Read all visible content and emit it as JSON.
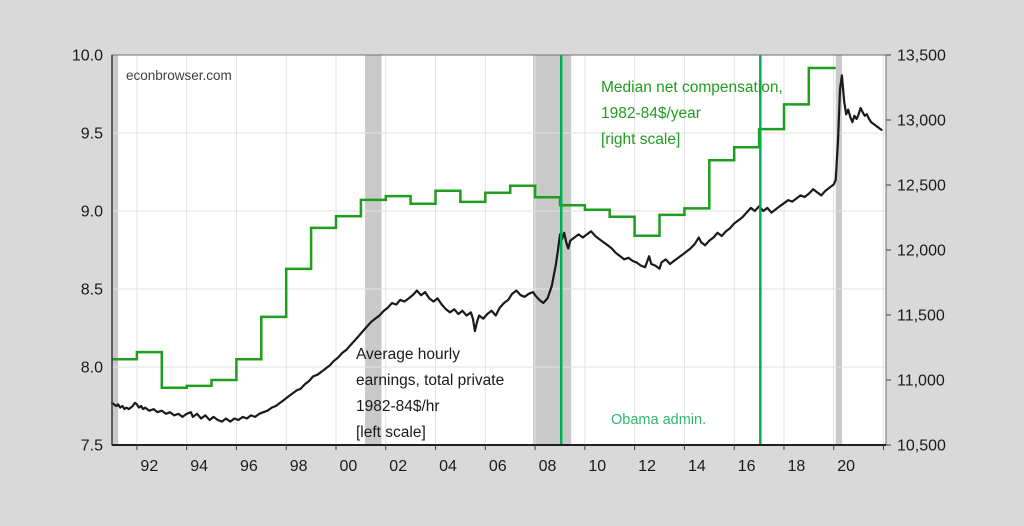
{
  "page": {
    "background": "#d9d9d9",
    "plot_background": "#ffffff",
    "watermark": "econbrowser.com"
  },
  "chart_data": {
    "type": "line",
    "title": "",
    "xlabel": "",
    "ylabel_left": "Average hourly earnings, total private, 1982-84$/hr",
    "ylabel_right": "Median net compensation, 1982-84$/year",
    "grid": true,
    "x_axis": {
      "domain": [
        1991,
        2022.1
      ],
      "labels": [
        "92",
        "94",
        "96",
        "98",
        "00",
        "02",
        "04",
        "06",
        "08",
        "10",
        "12",
        "14",
        "16",
        "18",
        "20"
      ],
      "label_years": [
        1992,
        1994,
        1996,
        1998,
        2000,
        2002,
        2004,
        2006,
        2008,
        2010,
        2012,
        2014,
        2016,
        2018,
        2020
      ]
    },
    "left_axis": {
      "range": [
        7.5,
        10.0
      ],
      "ticks": [
        10.0,
        9.5,
        9.0,
        8.5,
        8.0,
        7.5
      ],
      "tick_labels": [
        "10.0",
        "9.5",
        "9.0",
        "8.5",
        "8.0",
        "7.5"
      ]
    },
    "right_axis": {
      "range": [
        10500,
        13500
      ],
      "ticks": [
        13500,
        13000,
        12500,
        12000,
        11500,
        11000,
        10500
      ],
      "tick_labels": [
        "13,500",
        "13,000",
        "12,500",
        "12,000",
        "11,500",
        "11,000",
        "10,500"
      ]
    },
    "series": [
      {
        "name": "Average hourly earnings, total private 1982-84$/hr [left scale]",
        "axis": "left",
        "style": "line",
        "color": "#1a1a1a",
        "points": [
          [
            1991.0,
            7.77
          ],
          [
            1991.08,
            7.76
          ],
          [
            1991.17,
            7.75
          ],
          [
            1991.25,
            7.76
          ],
          [
            1991.33,
            7.74
          ],
          [
            1991.42,
            7.75
          ],
          [
            1991.5,
            7.73
          ],
          [
            1991.58,
            7.74
          ],
          [
            1991.67,
            7.73
          ],
          [
            1991.75,
            7.74
          ],
          [
            1991.83,
            7.75
          ],
          [
            1991.92,
            7.77
          ],
          [
            1992.0,
            7.76
          ],
          [
            1992.08,
            7.74
          ],
          [
            1992.17,
            7.75
          ],
          [
            1992.25,
            7.73
          ],
          [
            1992.33,
            7.74
          ],
          [
            1992.5,
            7.72
          ],
          [
            1992.67,
            7.73
          ],
          [
            1992.83,
            7.71
          ],
          [
            1993.0,
            7.72
          ],
          [
            1993.17,
            7.7
          ],
          [
            1993.33,
            7.71
          ],
          [
            1993.5,
            7.69
          ],
          [
            1993.67,
            7.7
          ],
          [
            1993.83,
            7.68
          ],
          [
            1994.0,
            7.7
          ],
          [
            1994.17,
            7.71
          ],
          [
            1994.25,
            7.68
          ],
          [
            1994.42,
            7.7
          ],
          [
            1994.58,
            7.67
          ],
          [
            1994.75,
            7.69
          ],
          [
            1994.92,
            7.66
          ],
          [
            1995.08,
            7.68
          ],
          [
            1995.25,
            7.66
          ],
          [
            1995.42,
            7.65
          ],
          [
            1995.58,
            7.67
          ],
          [
            1995.75,
            7.65
          ],
          [
            1995.92,
            7.67
          ],
          [
            1996.08,
            7.66
          ],
          [
            1996.25,
            7.68
          ],
          [
            1996.42,
            7.67
          ],
          [
            1996.58,
            7.69
          ],
          [
            1996.75,
            7.68
          ],
          [
            1996.92,
            7.7
          ],
          [
            1997.08,
            7.71
          ],
          [
            1997.25,
            7.72
          ],
          [
            1997.42,
            7.74
          ],
          [
            1997.58,
            7.75
          ],
          [
            1997.75,
            7.77
          ],
          [
            1997.92,
            7.79
          ],
          [
            1998.08,
            7.81
          ],
          [
            1998.25,
            7.83
          ],
          [
            1998.42,
            7.85
          ],
          [
            1998.58,
            7.86
          ],
          [
            1998.75,
            7.89
          ],
          [
            1998.92,
            7.91
          ],
          [
            1999.08,
            7.94
          ],
          [
            1999.25,
            7.95
          ],
          [
            1999.42,
            7.97
          ],
          [
            1999.58,
            7.99
          ],
          [
            1999.75,
            8.01
          ],
          [
            1999.92,
            8.04
          ],
          [
            2000.08,
            8.06
          ],
          [
            2000.25,
            8.09
          ],
          [
            2000.42,
            8.11
          ],
          [
            2000.58,
            8.14
          ],
          [
            2000.75,
            8.17
          ],
          [
            2000.92,
            8.2
          ],
          [
            2001.08,
            8.23
          ],
          [
            2001.25,
            8.26
          ],
          [
            2001.42,
            8.29
          ],
          [
            2001.58,
            8.31
          ],
          [
            2001.75,
            8.33
          ],
          [
            2001.92,
            8.36
          ],
          [
            2002.08,
            8.38
          ],
          [
            2002.25,
            8.41
          ],
          [
            2002.42,
            8.4
          ],
          [
            2002.58,
            8.43
          ],
          [
            2002.75,
            8.42
          ],
          [
            2002.92,
            8.44
          ],
          [
            2003.08,
            8.46
          ],
          [
            2003.25,
            8.49
          ],
          [
            2003.42,
            8.46
          ],
          [
            2003.58,
            8.48
          ],
          [
            2003.75,
            8.44
          ],
          [
            2003.92,
            8.42
          ],
          [
            2004.08,
            8.44
          ],
          [
            2004.25,
            8.4
          ],
          [
            2004.42,
            8.37
          ],
          [
            2004.58,
            8.35
          ],
          [
            2004.75,
            8.37
          ],
          [
            2004.92,
            8.34
          ],
          [
            2005.08,
            8.36
          ],
          [
            2005.25,
            8.33
          ],
          [
            2005.42,
            8.35
          ],
          [
            2005.5,
            8.31
          ],
          [
            2005.58,
            8.23
          ],
          [
            2005.67,
            8.29
          ],
          [
            2005.75,
            8.33
          ],
          [
            2005.92,
            8.31
          ],
          [
            2006.08,
            8.34
          ],
          [
            2006.25,
            8.36
          ],
          [
            2006.42,
            8.33
          ],
          [
            2006.58,
            8.38
          ],
          [
            2006.75,
            8.41
          ],
          [
            2006.92,
            8.43
          ],
          [
            2007.08,
            8.47
          ],
          [
            2007.25,
            8.49
          ],
          [
            2007.42,
            8.46
          ],
          [
            2007.58,
            8.45
          ],
          [
            2007.75,
            8.47
          ],
          [
            2007.92,
            8.48
          ],
          [
            2008.0,
            8.46
          ],
          [
            2008.17,
            8.43
          ],
          [
            2008.33,
            8.41
          ],
          [
            2008.5,
            8.44
          ],
          [
            2008.67,
            8.52
          ],
          [
            2008.83,
            8.65
          ],
          [
            2008.92,
            8.75
          ],
          [
            2009.0,
            8.85
          ],
          [
            2009.08,
            8.82
          ],
          [
            2009.17,
            8.86
          ],
          [
            2009.25,
            8.8
          ],
          [
            2009.33,
            8.76
          ],
          [
            2009.42,
            8.81
          ],
          [
            2009.58,
            8.83
          ],
          [
            2009.75,
            8.85
          ],
          [
            2009.92,
            8.83
          ],
          [
            2010.08,
            8.85
          ],
          [
            2010.25,
            8.87
          ],
          [
            2010.42,
            8.84
          ],
          [
            2010.58,
            8.82
          ],
          [
            2010.75,
            8.8
          ],
          [
            2010.92,
            8.78
          ],
          [
            2011.08,
            8.76
          ],
          [
            2011.25,
            8.73
          ],
          [
            2011.42,
            8.71
          ],
          [
            2011.58,
            8.69
          ],
          [
            2011.75,
            8.7
          ],
          [
            2011.92,
            8.68
          ],
          [
            2012.08,
            8.67
          ],
          [
            2012.25,
            8.65
          ],
          [
            2012.42,
            8.64
          ],
          [
            2012.58,
            8.71
          ],
          [
            2012.67,
            8.66
          ],
          [
            2012.83,
            8.65
          ],
          [
            2013.0,
            8.63
          ],
          [
            2013.08,
            8.67
          ],
          [
            2013.25,
            8.69
          ],
          [
            2013.42,
            8.66
          ],
          [
            2013.58,
            8.68
          ],
          [
            2013.75,
            8.7
          ],
          [
            2013.92,
            8.72
          ],
          [
            2014.08,
            8.74
          ],
          [
            2014.25,
            8.76
          ],
          [
            2014.42,
            8.79
          ],
          [
            2014.58,
            8.83
          ],
          [
            2014.67,
            8.8
          ],
          [
            2014.83,
            8.78
          ],
          [
            2015.0,
            8.81
          ],
          [
            2015.17,
            8.83
          ],
          [
            2015.33,
            8.86
          ],
          [
            2015.5,
            8.84
          ],
          [
            2015.67,
            8.87
          ],
          [
            2015.83,
            8.89
          ],
          [
            2016.0,
            8.92
          ],
          [
            2016.17,
            8.94
          ],
          [
            2016.33,
            8.96
          ],
          [
            2016.5,
            8.99
          ],
          [
            2016.67,
            9.02
          ],
          [
            2016.83,
            9.0
          ],
          [
            2017.0,
            9.03
          ],
          [
            2017.17,
            9.0
          ],
          [
            2017.33,
            9.02
          ],
          [
            2017.5,
            8.99
          ],
          [
            2017.67,
            9.01
          ],
          [
            2017.83,
            9.03
          ],
          [
            2018.0,
            9.05
          ],
          [
            2018.17,
            9.07
          ],
          [
            2018.33,
            9.06
          ],
          [
            2018.5,
            9.08
          ],
          [
            2018.67,
            9.1
          ],
          [
            2018.83,
            9.09
          ],
          [
            2019.0,
            9.11
          ],
          [
            2019.17,
            9.14
          ],
          [
            2019.33,
            9.12
          ],
          [
            2019.5,
            9.1
          ],
          [
            2019.67,
            9.13
          ],
          [
            2019.83,
            9.15
          ],
          [
            2020.0,
            9.17
          ],
          [
            2020.08,
            9.2
          ],
          [
            2020.17,
            9.45
          ],
          [
            2020.25,
            9.78
          ],
          [
            2020.33,
            9.87
          ],
          [
            2020.42,
            9.7
          ],
          [
            2020.5,
            9.62
          ],
          [
            2020.58,
            9.65
          ],
          [
            2020.67,
            9.6
          ],
          [
            2020.75,
            9.57
          ],
          [
            2020.83,
            9.61
          ],
          [
            2020.92,
            9.59
          ],
          [
            2021.0,
            9.62
          ],
          [
            2021.08,
            9.66
          ],
          [
            2021.17,
            9.63
          ],
          [
            2021.25,
            9.61
          ],
          [
            2021.33,
            9.62
          ],
          [
            2021.42,
            9.59
          ],
          [
            2021.5,
            9.57
          ],
          [
            2021.58,
            9.56
          ],
          [
            2021.67,
            9.55
          ],
          [
            2021.75,
            9.54
          ],
          [
            2021.83,
            9.53
          ],
          [
            2021.92,
            9.52
          ]
        ]
      },
      {
        "name": "Median net compensation, 1982-84$/year [right scale]",
        "axis": "right",
        "style": "step",
        "color": "#1f9d1f",
        "years": [
          1991,
          1992,
          1993,
          1994,
          1995,
          1996,
          1997,
          1998,
          1999,
          2000,
          2001,
          2002,
          2003,
          2004,
          2005,
          2006,
          2007,
          2008,
          2009,
          2010,
          2011,
          2012,
          2013,
          2014,
          2015,
          2016,
          2017,
          2018,
          2019
        ],
        "values": [
          11160,
          11215,
          10940,
          10955,
          11000,
          11160,
          11485,
          11855,
          12170,
          12260,
          12385,
          12415,
          12355,
          12455,
          12370,
          12440,
          12495,
          12405,
          12345,
          12310,
          12255,
          12110,
          12270,
          12320,
          12690,
          12790,
          12930,
          13120,
          13400
        ],
        "end_year": 2020.08
      }
    ],
    "recession_bands": [
      [
        1991.0,
        1991.25
      ],
      [
        2001.17,
        2001.83
      ],
      [
        2007.92,
        2009.45
      ],
      [
        2020.08,
        2020.33
      ]
    ],
    "event_lines": {
      "label": "Obama admin.",
      "years": [
        2009.05,
        2017.05
      ],
      "color": "#00b050"
    },
    "annotations": {
      "watermark": {
        "text": "econbrowser.com"
      },
      "median_label": {
        "lines": [
          "Median net compensation,",
          "1982-84$/year",
          "[right scale]"
        ],
        "color": "#1f9d1f"
      },
      "ahe_label": {
        "lines": [
          "Average hourly",
          "earnings, total private",
          "1982-84$/hr",
          "[left scale]"
        ],
        "color": "#1a1a1a"
      },
      "obama_label": {
        "text": "Obama admin.",
        "color": "#33b573"
      }
    },
    "colors": {
      "black_line": "#1a1a1a",
      "green_line": "#1f9d1f",
      "event_line": "#00b050",
      "recession": "#c9c9c9",
      "grid": "#e2e2e2",
      "frame": "#6e6e6e",
      "background": "#d9d9d9",
      "plot_bg": "#ffffff"
    }
  }
}
